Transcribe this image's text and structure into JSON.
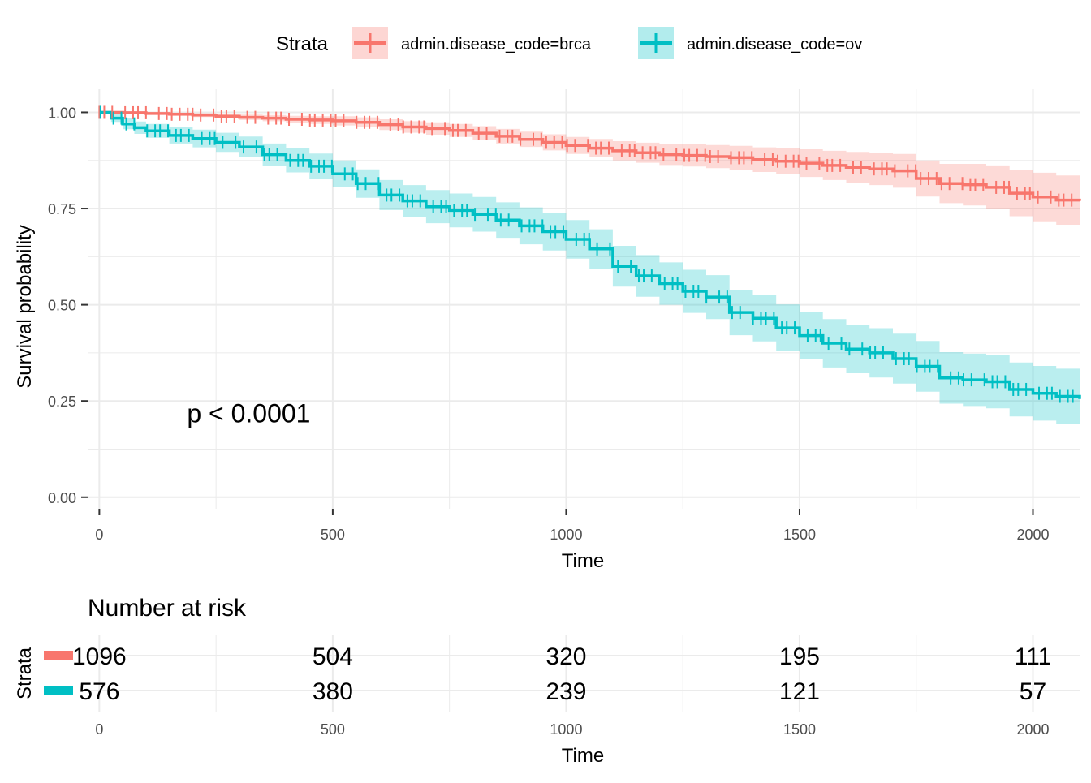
{
  "colors": {
    "brca": "#F8766D",
    "ov": "#00BFC4",
    "brca_band": "#F8766D",
    "ov_band": "#00BFC4",
    "grid": "#EBEBEB",
    "text": "#000000",
    "tick": "#4D4D4D"
  },
  "legend": {
    "title": "Strata",
    "items": [
      {
        "label": "admin.disease_code=brca",
        "color_key": "brca"
      },
      {
        "label": "admin.disease_code=ov",
        "color_key": "ov"
      }
    ]
  },
  "chart_data": [
    {
      "type": "line",
      "subtype": "kaplan-meier",
      "xlabel": "Time",
      "ylabel": "Survival probability",
      "xlim": [
        -25,
        2100
      ],
      "ylim": [
        -0.03,
        1.06
      ],
      "x_ticks": [
        0,
        500,
        1000,
        1500,
        2000
      ],
      "x_tick_labels": [
        "0",
        "500",
        "1000",
        "1500",
        "2000"
      ],
      "y_ticks": [
        0,
        0.25,
        0.5,
        0.75,
        1
      ],
      "y_tick_labels": [
        "0.00",
        "0.25",
        "0.50",
        "0.75",
        "1.00"
      ],
      "grid": true,
      "legend_position": "top",
      "annotation": "p < 0.0001",
      "annotation_at": [
        320,
        0.195
      ],
      "series": [
        {
          "name": "admin.disease_code=brca",
          "color_key": "brca",
          "x": [
            0,
            50,
            100,
            150,
            200,
            250,
            300,
            350,
            400,
            450,
            500,
            550,
            600,
            650,
            700,
            750,
            800,
            850,
            900,
            950,
            1000,
            1050,
            1100,
            1150,
            1200,
            1250,
            1300,
            1350,
            1400,
            1450,
            1500,
            1550,
            1600,
            1650,
            1700,
            1750,
            1800,
            1850,
            1900,
            1950,
            2000,
            2050,
            2100
          ],
          "y": [
            1.0,
            0.999,
            0.997,
            0.995,
            0.993,
            0.99,
            0.987,
            0.985,
            0.982,
            0.98,
            0.978,
            0.974,
            0.968,
            0.962,
            0.958,
            0.953,
            0.946,
            0.938,
            0.93,
            0.922,
            0.914,
            0.907,
            0.9,
            0.895,
            0.89,
            0.888,
            0.885,
            0.882,
            0.877,
            0.873,
            0.868,
            0.862,
            0.857,
            0.853,
            0.848,
            0.828,
            0.815,
            0.812,
            0.805,
            0.79,
            0.78,
            0.772,
            0.77
          ],
          "lower": [
            1.0,
            0.997,
            0.994,
            0.991,
            0.988,
            0.984,
            0.98,
            0.977,
            0.973,
            0.97,
            0.966,
            0.961,
            0.954,
            0.947,
            0.942,
            0.936,
            0.928,
            0.919,
            0.91,
            0.901,
            0.892,
            0.883,
            0.875,
            0.869,
            0.863,
            0.859,
            0.855,
            0.851,
            0.845,
            0.839,
            0.832,
            0.824,
            0.817,
            0.811,
            0.804,
            0.781,
            0.764,
            0.758,
            0.748,
            0.73,
            0.717,
            0.708,
            0.705
          ],
          "upper": [
            1.0,
            1.0,
            1.0,
            0.999,
            0.998,
            0.996,
            0.994,
            0.993,
            0.991,
            0.99,
            0.99,
            0.987,
            0.982,
            0.977,
            0.974,
            0.97,
            0.964,
            0.957,
            0.95,
            0.943,
            0.936,
            0.931,
            0.925,
            0.921,
            0.917,
            0.917,
            0.915,
            0.913,
            0.909,
            0.907,
            0.904,
            0.9,
            0.897,
            0.895,
            0.892,
            0.875,
            0.866,
            0.866,
            0.862,
            0.85,
            0.843,
            0.836,
            0.835
          ]
        },
        {
          "name": "admin.disease_code=ov",
          "color_key": "ov",
          "x": [
            0,
            25,
            50,
            75,
            100,
            150,
            200,
            250,
            300,
            350,
            400,
            450,
            500,
            550,
            600,
            650,
            700,
            750,
            800,
            850,
            900,
            950,
            1000,
            1050,
            1100,
            1150,
            1200,
            1250,
            1300,
            1350,
            1400,
            1450,
            1500,
            1550,
            1600,
            1650,
            1700,
            1750,
            1800,
            1850,
            1900,
            1950,
            2000,
            2050,
            2100
          ],
          "y": [
            1.0,
            0.985,
            0.97,
            0.96,
            0.952,
            0.94,
            0.932,
            0.922,
            0.91,
            0.89,
            0.875,
            0.86,
            0.84,
            0.815,
            0.785,
            0.77,
            0.755,
            0.745,
            0.735,
            0.72,
            0.705,
            0.69,
            0.67,
            0.645,
            0.6,
            0.575,
            0.555,
            0.535,
            0.52,
            0.48,
            0.465,
            0.44,
            0.42,
            0.4,
            0.385,
            0.375,
            0.36,
            0.34,
            0.31,
            0.305,
            0.3,
            0.28,
            0.27,
            0.262,
            0.255
          ],
          "lower": [
            1.0,
            0.975,
            0.956,
            0.944,
            0.934,
            0.919,
            0.909,
            0.897,
            0.883,
            0.861,
            0.844,
            0.827,
            0.805,
            0.778,
            0.746,
            0.729,
            0.712,
            0.701,
            0.69,
            0.674,
            0.657,
            0.641,
            0.62,
            0.594,
            0.547,
            0.521,
            0.5,
            0.479,
            0.463,
            0.421,
            0.405,
            0.379,
            0.358,
            0.337,
            0.322,
            0.311,
            0.295,
            0.274,
            0.243,
            0.237,
            0.231,
            0.21,
            0.199,
            0.19,
            0.182
          ],
          "upper": [
            1.0,
            0.995,
            0.984,
            0.976,
            0.97,
            0.961,
            0.955,
            0.947,
            0.937,
            0.919,
            0.906,
            0.893,
            0.875,
            0.852,
            0.824,
            0.811,
            0.798,
            0.789,
            0.78,
            0.766,
            0.753,
            0.739,
            0.72,
            0.696,
            0.653,
            0.629,
            0.61,
            0.591,
            0.577,
            0.539,
            0.525,
            0.501,
            0.482,
            0.463,
            0.448,
            0.439,
            0.425,
            0.406,
            0.377,
            0.373,
            0.369,
            0.35,
            0.341,
            0.334,
            0.328
          ]
        }
      ]
    },
    {
      "type": "table",
      "title": "Number at risk",
      "ylabel": "Strata",
      "xlabel": "Time",
      "x_ticks": [
        0,
        500,
        1000,
        1500,
        2000
      ],
      "x_tick_labels": [
        "0",
        "500",
        "1000",
        "1500",
        "2000"
      ],
      "rows": [
        {
          "name": "admin.disease_code=brca",
          "color_key": "brca",
          "values": [
            "1096",
            "504",
            "320",
            "195",
            "111"
          ]
        },
        {
          "name": "admin.disease_code=ov",
          "color_key": "ov",
          "values": [
            "576",
            "380",
            "239",
            "121",
            "57"
          ]
        }
      ]
    }
  ]
}
